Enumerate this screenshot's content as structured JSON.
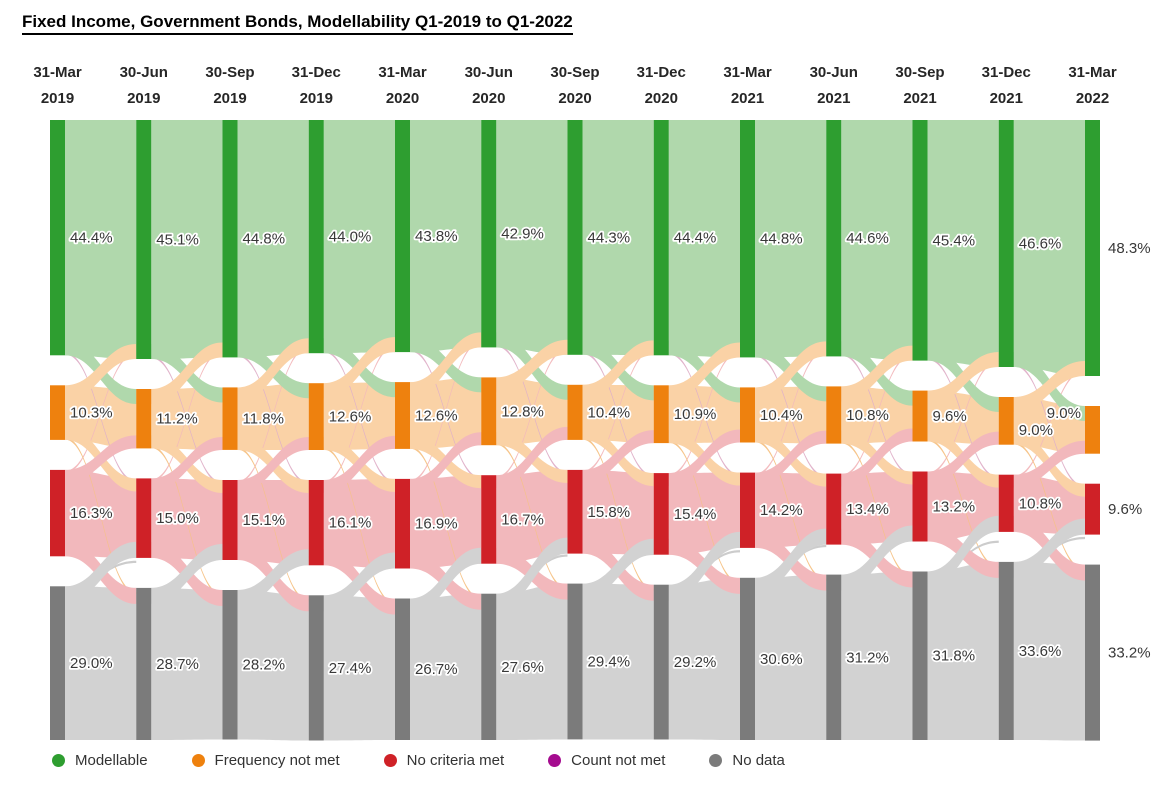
{
  "chart_data": {
    "type": "sankey",
    "title": "Fixed Income, Government Bonds, Modellability Q1-2019 to Q1-2022",
    "unit": "%",
    "columns": [
      {
        "line1": "31-Mar",
        "line2": "2019"
      },
      {
        "line1": "30-Jun",
        "line2": "2019"
      },
      {
        "line1": "30-Sep",
        "line2": "2019"
      },
      {
        "line1": "31-Dec",
        "line2": "2019"
      },
      {
        "line1": "31-Mar",
        "line2": "2020"
      },
      {
        "line1": "30-Jun",
        "line2": "2020"
      },
      {
        "line1": "30-Sep",
        "line2": "2020"
      },
      {
        "line1": "31-Dec",
        "line2": "2020"
      },
      {
        "line1": "31-Mar",
        "line2": "2021"
      },
      {
        "line1": "30-Jun",
        "line2": "2021"
      },
      {
        "line1": "30-Sep",
        "line2": "2021"
      },
      {
        "line1": "31-Dec",
        "line2": "2021"
      },
      {
        "line1": "31-Mar",
        "line2": "2022"
      }
    ],
    "categories": [
      {
        "name": "Modellable",
        "color": "#2e9e30",
        "flow_color": "#b0d8ac"
      },
      {
        "name": "Frequency not met",
        "color": "#ee810e",
        "flow_color": "#fad2a6"
      },
      {
        "name": "No criteria met",
        "color": "#cf2127",
        "flow_color": "#f2b8bc"
      },
      {
        "name": "Count not met",
        "color": "#a50b8f",
        "flow_color": "#dfb0c8"
      },
      {
        "name": "No data",
        "color": "#7b7b7b",
        "flow_color": "#d2d2d2"
      }
    ],
    "series": [
      {
        "name": "Modellable",
        "values": [
          44.4,
          45.1,
          44.8,
          44.0,
          43.8,
          42.9,
          44.3,
          44.4,
          44.8,
          44.6,
          45.4,
          46.6,
          48.3
        ]
      },
      {
        "name": "Frequency not met",
        "values": [
          10.3,
          11.2,
          11.8,
          12.6,
          12.6,
          12.8,
          10.4,
          10.9,
          10.4,
          10.8,
          9.6,
          9.0,
          9.0
        ]
      },
      {
        "name": "No criteria met",
        "values": [
          16.3,
          15.0,
          15.1,
          16.1,
          16.9,
          16.7,
          15.8,
          15.4,
          14.2,
          13.4,
          13.2,
          10.8,
          9.6
        ]
      },
      {
        "name": "No data",
        "values": [
          29.0,
          28.7,
          28.2,
          27.4,
          26.7,
          27.6,
          29.4,
          29.2,
          30.6,
          31.2,
          31.8,
          33.6,
          33.2
        ]
      }
    ],
    "label_format": "0.0%",
    "legend_position": "bottom"
  }
}
